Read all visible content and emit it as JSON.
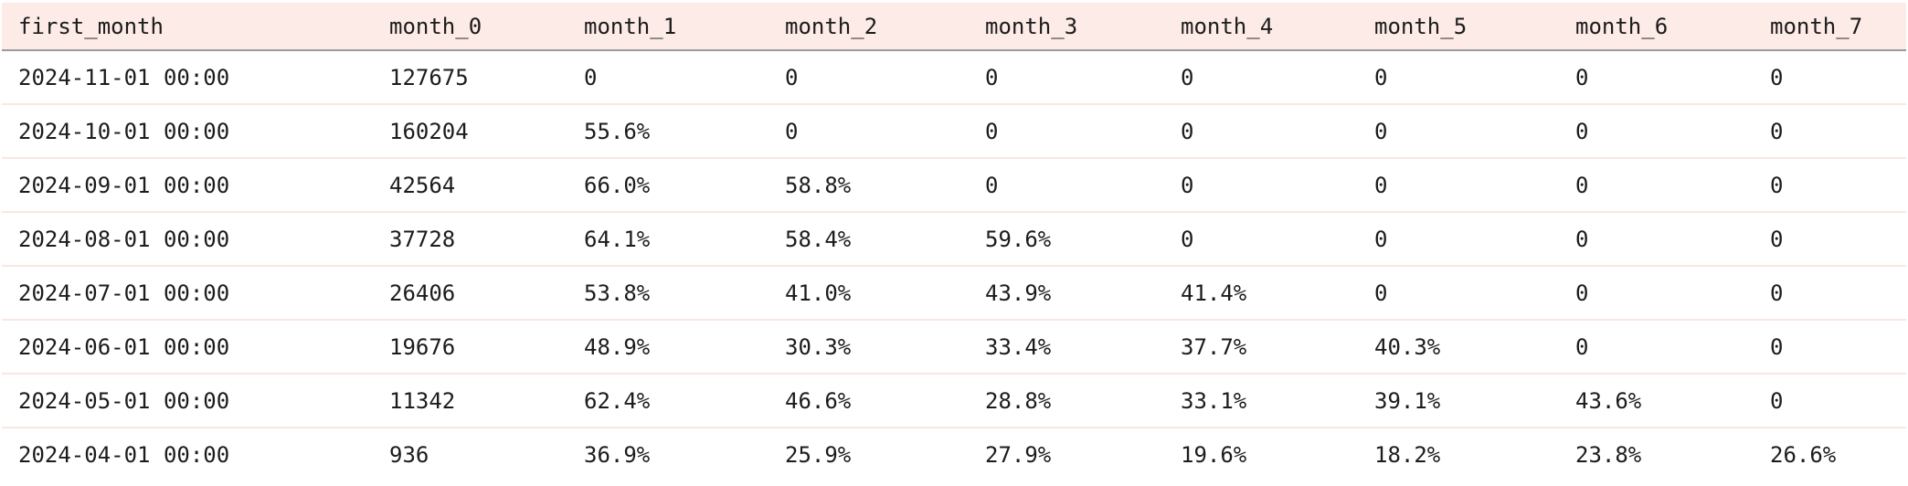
{
  "table": {
    "columns": [
      "first_month",
      "month_0",
      "month_1",
      "month_2",
      "month_3",
      "month_4",
      "month_5",
      "month_6",
      "month_7"
    ],
    "rows": [
      [
        "2024-11-01 00:00",
        "127675",
        "0",
        "0",
        "0",
        "0",
        "0",
        "0",
        "0"
      ],
      [
        "2024-10-01 00:00",
        "160204",
        "55.6%",
        "0",
        "0",
        "0",
        "0",
        "0",
        "0"
      ],
      [
        "2024-09-01 00:00",
        "42564",
        "66.0%",
        "58.8%",
        "0",
        "0",
        "0",
        "0",
        "0"
      ],
      [
        "2024-08-01 00:00",
        "37728",
        "64.1%",
        "58.4%",
        "59.6%",
        "0",
        "0",
        "0",
        "0"
      ],
      [
        "2024-07-01 00:00",
        "26406",
        "53.8%",
        "41.0%",
        "43.9%",
        "41.4%",
        "0",
        "0",
        "0"
      ],
      [
        "2024-06-01 00:00",
        "19676",
        "48.9%",
        "30.3%",
        "33.4%",
        "37.7%",
        "40.3%",
        "0",
        "0"
      ],
      [
        "2024-05-01 00:00",
        "11342",
        "62.4%",
        "46.6%",
        "28.8%",
        "33.1%",
        "39.1%",
        "43.6%",
        "0"
      ],
      [
        "2024-04-01 00:00",
        "936",
        "36.9%",
        "25.9%",
        "27.9%",
        "19.6%",
        "18.2%",
        "23.8%",
        "26.6%"
      ]
    ]
  },
  "colors": {
    "header_bg": "#fcebe6",
    "header_border": "#9b9b9b",
    "row_divider": "#f9e7e2",
    "row_bg": "#ffffff",
    "text": "#1c1c1c"
  }
}
